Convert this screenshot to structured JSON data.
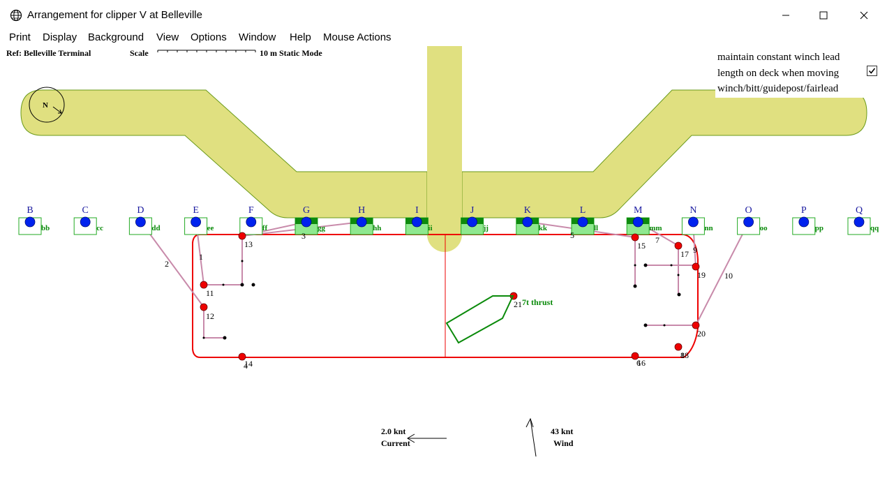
{
  "window": {
    "title": "Arrangement for clipper V at Belleville",
    "icon": "globe-icon",
    "controls": [
      "minimize-icon",
      "maximize-icon",
      "close-icon"
    ]
  },
  "menu": {
    "items": [
      "Print",
      "Display",
      "Background",
      "View",
      "Options",
      "Window",
      "Help",
      "Mouse Actions"
    ]
  },
  "status": {
    "ref": "Ref: Belleville Terminal",
    "scale_label": "Scale",
    "scale_value": "10 m",
    "mode": "Static Mode"
  },
  "option": {
    "line1": "maintain constant winch lead",
    "line2": "length on deck when moving",
    "line3": "winch/bitt/guidepost/fairlead",
    "checked": true
  },
  "compass": {
    "label": "N"
  },
  "berth": {
    "upper_labels": [
      "B",
      "C",
      "D",
      "E",
      "F",
      "G",
      "H",
      "I",
      "J",
      "K",
      "L",
      "M",
      "N",
      "O",
      "P",
      "Q"
    ],
    "lower_labels": [
      "bb",
      "cc",
      "dd",
      "ee",
      "ff",
      "gg",
      "hh",
      "ii",
      "jj",
      "kk",
      "ll",
      "mm",
      "nn",
      "oo",
      "pp",
      "qq"
    ],
    "active": [
      false,
      false,
      false,
      false,
      false,
      true,
      true,
      true,
      true,
      true,
      true,
      true,
      false,
      false,
      false,
      false
    ]
  },
  "lines": [
    "1",
    "2",
    "3",
    "4",
    "5",
    "6",
    "7",
    "8",
    "9",
    "10"
  ],
  "fittings": [
    "11",
    "12",
    "13",
    "14",
    "15",
    "16",
    "17",
    "18",
    "19",
    "20",
    "21"
  ],
  "thruster": {
    "label": "7t thrust"
  },
  "environment": {
    "current_value": "2.0 knt",
    "current_label": "Current",
    "wind_value": "43 knt",
    "wind_label": "Wind"
  },
  "colors": {
    "jetty": "#e0e080",
    "jetty_edge": "#6a9a1a",
    "hull": "#ee0000",
    "mooring_line": "#c88aaa",
    "bollard": "#0022ee",
    "fender": "#22aa22",
    "label": "#1a1aa0",
    "green_label": "#0a8a0a"
  }
}
